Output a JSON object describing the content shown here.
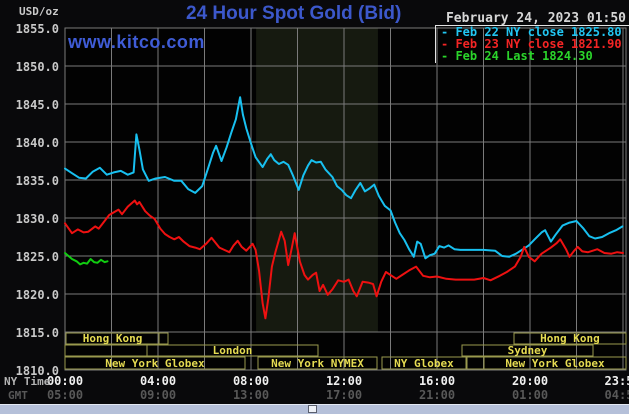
{
  "header": {
    "unit_label": "USD/oz",
    "title": "24 Hour Spot Gold (Bid)",
    "datetime": "February 24, 2023 01:50",
    "watermark": "www.kitco.com"
  },
  "legend": [
    {
      "text": "- Feb 22 NY close 1825.80",
      "color": "#22c6f2"
    },
    {
      "text": "- Feb 23 NY close 1821.90",
      "color": "#f42525"
    },
    {
      "text": "- Feb 24 Last 1824.30",
      "color": "#2bd42b"
    }
  ],
  "footer": {
    "ny_time_label": "NY Time",
    "gmt_label": "GMT"
  },
  "colors": {
    "background": "#09090b",
    "plot_background": "#020202",
    "grid": "#7a7a7a",
    "highlight_band": "#161a10",
    "title_blue": "#3c58cb",
    "session_border": "#99994d",
    "session_text": "#e6dc52",
    "series_feb22": "#18c0f0",
    "series_feb23": "#ee1111",
    "series_feb24": "#11cc11",
    "divider_bar": "#b5c0d9"
  },
  "chart_data": {
    "type": "line",
    "title": "24 Hour Spot Gold (Bid)",
    "ylabel": "USD/oz",
    "y_axis": {
      "min": 1810,
      "max": 1855,
      "tick_step": 5
    },
    "x_axis": {
      "range_hours": [
        0,
        24
      ],
      "gridline_every_hours": 2,
      "ticks": [
        {
          "hour": 0,
          "ny": "00:00",
          "gmt": "05:00"
        },
        {
          "hour": 4,
          "ny": "04:00",
          "gmt": "09:00"
        },
        {
          "hour": 8,
          "ny": "08:00",
          "gmt": "13:00"
        },
        {
          "hour": 12,
          "ny": "12:00",
          "gmt": "17:00"
        },
        {
          "hour": 16,
          "ny": "16:00",
          "gmt": "21:00"
        },
        {
          "hour": 20,
          "ny": "20:00",
          "gmt": "01:00"
        },
        {
          "hour": 23.983,
          "ny": "23:59",
          "gmt": "04:59"
        }
      ]
    },
    "highlight_band": {
      "start_hour": 8.22,
      "end_hour": 13.46
    },
    "grid": true,
    "legend_position": "top-right",
    "series": [
      {
        "name": "Feb 22",
        "legend": "Feb 22 NY close 1825.80",
        "close": 1825.8,
        "color": "#18c0f0",
        "points": [
          [
            0.0,
            1836.5
          ],
          [
            0.3,
            1835.9
          ],
          [
            0.6,
            1835.3
          ],
          [
            0.9,
            1835.2
          ],
          [
            1.2,
            1836.1
          ],
          [
            1.5,
            1836.6
          ],
          [
            1.8,
            1835.7
          ],
          [
            2.1,
            1836.0
          ],
          [
            2.4,
            1836.2
          ],
          [
            2.7,
            1835.7
          ],
          [
            2.95,
            1836.0
          ],
          [
            3.07,
            1841.0
          ],
          [
            3.2,
            1839.0
          ],
          [
            3.35,
            1836.4
          ],
          [
            3.6,
            1834.9
          ],
          [
            3.9,
            1835.2
          ],
          [
            4.3,
            1835.4
          ],
          [
            4.7,
            1834.9
          ],
          [
            5.0,
            1834.9
          ],
          [
            5.3,
            1833.8
          ],
          [
            5.6,
            1833.3
          ],
          [
            5.9,
            1834.2
          ],
          [
            6.15,
            1836.5
          ],
          [
            6.37,
            1838.6
          ],
          [
            6.5,
            1839.5
          ],
          [
            6.73,
            1837.5
          ],
          [
            6.95,
            1839.3
          ],
          [
            7.15,
            1841.2
          ],
          [
            7.35,
            1843.0
          ],
          [
            7.53,
            1845.9
          ],
          [
            7.65,
            1843.6
          ],
          [
            7.8,
            1841.8
          ],
          [
            8.0,
            1839.8
          ],
          [
            8.2,
            1838.0
          ],
          [
            8.5,
            1836.7
          ],
          [
            8.7,
            1837.8
          ],
          [
            8.85,
            1838.4
          ],
          [
            9.0,
            1837.6
          ],
          [
            9.2,
            1837.1
          ],
          [
            9.4,
            1837.4
          ],
          [
            9.6,
            1837.0
          ],
          [
            9.8,
            1835.6
          ],
          [
            10.05,
            1833.7
          ],
          [
            10.25,
            1835.6
          ],
          [
            10.45,
            1836.9
          ],
          [
            10.6,
            1837.6
          ],
          [
            10.8,
            1837.3
          ],
          [
            11.0,
            1837.4
          ],
          [
            11.2,
            1836.4
          ],
          [
            11.5,
            1835.4
          ],
          [
            11.7,
            1834.2
          ],
          [
            11.9,
            1833.7
          ],
          [
            12.1,
            1833.0
          ],
          [
            12.3,
            1832.6
          ],
          [
            12.5,
            1833.7
          ],
          [
            12.7,
            1834.6
          ],
          [
            12.9,
            1833.5
          ],
          [
            13.1,
            1833.9
          ],
          [
            13.3,
            1834.4
          ],
          [
            13.5,
            1832.9
          ],
          [
            13.75,
            1831.6
          ],
          [
            14.0,
            1831.0
          ],
          [
            14.2,
            1829.4
          ],
          [
            14.4,
            1828.0
          ],
          [
            14.6,
            1827.1
          ],
          [
            14.8,
            1825.9
          ],
          [
            15.0,
            1824.9
          ],
          [
            15.15,
            1826.9
          ],
          [
            15.3,
            1826.6
          ],
          [
            15.5,
            1824.7
          ],
          [
            15.7,
            1825.1
          ],
          [
            15.9,
            1825.3
          ],
          [
            16.1,
            1826.3
          ],
          [
            16.3,
            1826.1
          ],
          [
            16.5,
            1826.4
          ],
          [
            16.75,
            1825.9
          ],
          [
            17.0,
            1825.8
          ],
          [
            17.5,
            1825.8
          ],
          [
            18.0,
            1825.8
          ],
          [
            18.5,
            1825.7
          ],
          [
            18.8,
            1825.0
          ],
          [
            19.1,
            1824.9
          ],
          [
            19.4,
            1825.3
          ],
          [
            19.7,
            1825.9
          ],
          [
            19.95,
            1826.4
          ],
          [
            20.2,
            1827.2
          ],
          [
            20.5,
            1828.1
          ],
          [
            20.65,
            1828.4
          ],
          [
            20.9,
            1826.9
          ],
          [
            21.1,
            1827.8
          ],
          [
            21.4,
            1829.0
          ],
          [
            21.7,
            1829.4
          ],
          [
            22.0,
            1829.6
          ],
          [
            22.3,
            1828.6
          ],
          [
            22.55,
            1827.6
          ],
          [
            22.8,
            1827.3
          ],
          [
            23.1,
            1827.5
          ],
          [
            23.4,
            1828.0
          ],
          [
            23.7,
            1828.4
          ],
          [
            23.98,
            1828.9
          ]
        ]
      },
      {
        "name": "Feb 23",
        "legend": "Feb 23 NY close 1821.90",
        "close": 1821.9,
        "color": "#ee1111",
        "points": [
          [
            0.0,
            1829.3
          ],
          [
            0.3,
            1828.0
          ],
          [
            0.55,
            1828.5
          ],
          [
            0.8,
            1828.1
          ],
          [
            1.0,
            1828.2
          ],
          [
            1.3,
            1828.9
          ],
          [
            1.45,
            1828.6
          ],
          [
            1.6,
            1829.2
          ],
          [
            1.9,
            1830.4
          ],
          [
            2.3,
            1831.1
          ],
          [
            2.45,
            1830.5
          ],
          [
            2.7,
            1831.5
          ],
          [
            3.0,
            1832.3
          ],
          [
            3.1,
            1831.8
          ],
          [
            3.2,
            1832.1
          ],
          [
            3.45,
            1830.9
          ],
          [
            3.65,
            1830.3
          ],
          [
            3.85,
            1829.9
          ],
          [
            4.1,
            1828.6
          ],
          [
            4.3,
            1827.9
          ],
          [
            4.5,
            1827.5
          ],
          [
            4.7,
            1827.2
          ],
          [
            4.9,
            1827.5
          ],
          [
            5.1,
            1826.9
          ],
          [
            5.35,
            1826.3
          ],
          [
            5.6,
            1826.1
          ],
          [
            5.8,
            1825.9
          ],
          [
            6.07,
            1826.6
          ],
          [
            6.3,
            1827.4
          ],
          [
            6.64,
            1826.1
          ],
          [
            6.85,
            1825.8
          ],
          [
            7.07,
            1825.5
          ],
          [
            7.25,
            1826.4
          ],
          [
            7.43,
            1827.0
          ],
          [
            7.6,
            1826.2
          ],
          [
            7.8,
            1825.7
          ],
          [
            8.07,
            1826.6
          ],
          [
            8.2,
            1825.8
          ],
          [
            8.35,
            1823.0
          ],
          [
            8.5,
            1818.8
          ],
          [
            8.62,
            1816.8
          ],
          [
            8.75,
            1819.5
          ],
          [
            8.9,
            1823.6
          ],
          [
            9.05,
            1825.5
          ],
          [
            9.3,
            1828.2
          ],
          [
            9.45,
            1827.0
          ],
          [
            9.6,
            1823.8
          ],
          [
            9.75,
            1826.0
          ],
          [
            9.88,
            1828.0
          ],
          [
            10.1,
            1824.3
          ],
          [
            10.3,
            1822.5
          ],
          [
            10.45,
            1821.9
          ],
          [
            10.65,
            1822.5
          ],
          [
            10.8,
            1822.8
          ],
          [
            10.95,
            1820.4
          ],
          [
            11.1,
            1821.2
          ],
          [
            11.3,
            1819.9
          ],
          [
            11.5,
            1820.6
          ],
          [
            11.75,
            1821.8
          ],
          [
            12.0,
            1821.6
          ],
          [
            12.2,
            1821.9
          ],
          [
            12.4,
            1820.4
          ],
          [
            12.55,
            1819.7
          ],
          [
            12.8,
            1821.6
          ],
          [
            13.05,
            1821.5
          ],
          [
            13.25,
            1821.3
          ],
          [
            13.4,
            1819.7
          ],
          [
            13.6,
            1821.6
          ],
          [
            13.8,
            1822.9
          ],
          [
            14.05,
            1822.4
          ],
          [
            14.25,
            1822.0
          ],
          [
            14.5,
            1822.5
          ],
          [
            14.8,
            1823.1
          ],
          [
            15.1,
            1823.6
          ],
          [
            15.4,
            1822.4
          ],
          [
            15.7,
            1822.2
          ],
          [
            16.0,
            1822.3
          ],
          [
            16.4,
            1822.0
          ],
          [
            16.8,
            1821.9
          ],
          [
            17.2,
            1821.9
          ],
          [
            17.6,
            1821.9
          ],
          [
            18.0,
            1822.1
          ],
          [
            18.3,
            1821.8
          ],
          [
            18.7,
            1822.4
          ],
          [
            19.0,
            1822.9
          ],
          [
            19.35,
            1823.6
          ],
          [
            19.6,
            1824.9
          ],
          [
            19.75,
            1826.2
          ],
          [
            19.95,
            1824.9
          ],
          [
            20.2,
            1824.3
          ],
          [
            20.5,
            1825.3
          ],
          [
            20.9,
            1826.1
          ],
          [
            21.15,
            1826.7
          ],
          [
            21.3,
            1827.2
          ],
          [
            21.55,
            1825.9
          ],
          [
            21.7,
            1824.9
          ],
          [
            21.9,
            1825.7
          ],
          [
            22.05,
            1826.2
          ],
          [
            22.25,
            1825.6
          ],
          [
            22.5,
            1825.5
          ],
          [
            22.7,
            1825.7
          ],
          [
            22.9,
            1825.9
          ],
          [
            23.2,
            1825.4
          ],
          [
            23.5,
            1825.3
          ],
          [
            23.75,
            1825.5
          ],
          [
            24.0,
            1825.4
          ]
        ]
      },
      {
        "name": "Feb 24",
        "legend": "Feb 24 Last 1824.30",
        "last": 1824.3,
        "color": "#11cc11",
        "points": [
          [
            0.0,
            1825.4
          ],
          [
            0.15,
            1825.0
          ],
          [
            0.3,
            1824.6
          ],
          [
            0.5,
            1824.3
          ],
          [
            0.65,
            1823.9
          ],
          [
            0.8,
            1824.1
          ],
          [
            0.95,
            1824.0
          ],
          [
            1.1,
            1824.6
          ],
          [
            1.25,
            1824.2
          ],
          [
            1.4,
            1824.1
          ],
          [
            1.55,
            1824.5
          ],
          [
            1.7,
            1824.2
          ],
          [
            1.83,
            1824.3
          ]
        ]
      }
    ],
    "sessions": [
      {
        "row": 0,
        "label": "Hong Kong",
        "start_hour": 0.05,
        "end_hour": 4.04
      },
      {
        "row": 0,
        "label": "",
        "start_hour": 4.04,
        "end_hour": 4.43
      },
      {
        "row": 0,
        "label": "Hong Kong",
        "start_hour": 19.31,
        "end_hour": 24.13
      },
      {
        "row": 1,
        "label": "",
        "start_hour": 0.0,
        "end_hour": 3.53
      },
      {
        "row": 1,
        "label": "London",
        "start_hour": 3.53,
        "end_hour": 10.88
      },
      {
        "row": 1,
        "label": "Sydney",
        "start_hour": 17.08,
        "end_hour": 22.71
      },
      {
        "row": 2,
        "label": "New York Globex",
        "start_hour": 0.0,
        "end_hour": 7.74
      },
      {
        "row": 2,
        "label": "New York NYMEX",
        "start_hour": 8.3,
        "end_hour": 13.42
      },
      {
        "row": 2,
        "label": "NY Globex",
        "start_hour": 13.63,
        "end_hour": 17.25
      },
      {
        "row": 2,
        "label": "",
        "start_hour": 17.29,
        "end_hour": 18.02
      },
      {
        "row": 2,
        "label": "New York Globex",
        "start_hour": 18.02,
        "end_hour": 24.13
      }
    ]
  }
}
